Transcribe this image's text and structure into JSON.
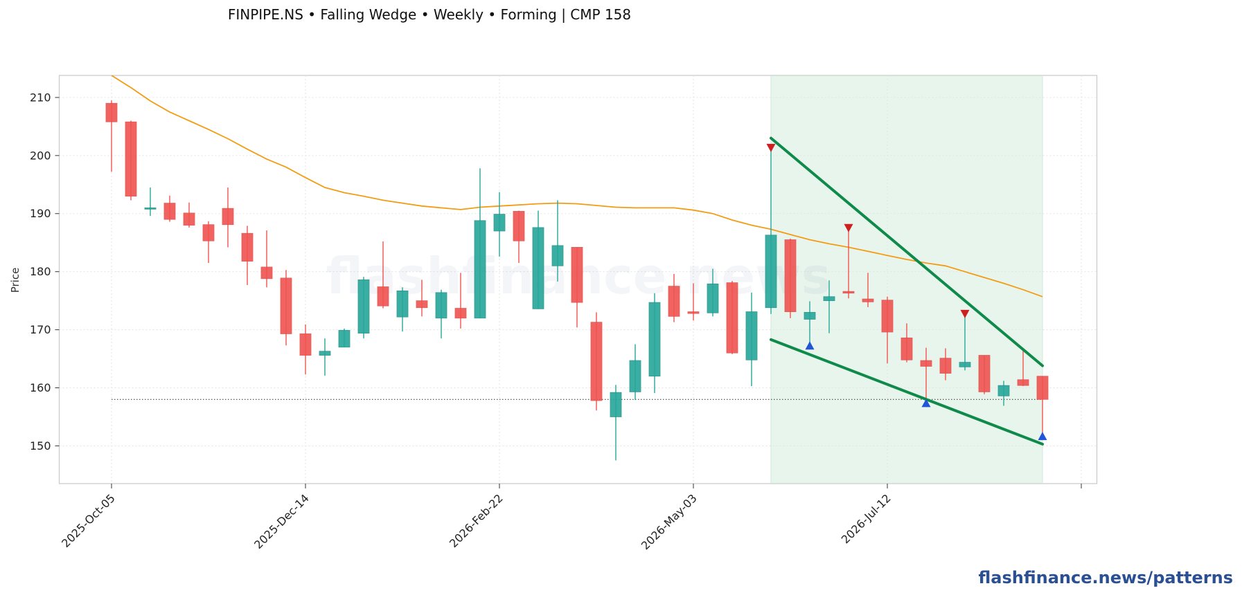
{
  "chart_data": {
    "type": "candlestick",
    "title": "FINPIPE.NS  •  Falling Wedge  •  Weekly  •  Forming  |  CMP 158",
    "ylabel": "Price",
    "ylim": [
      143.5,
      213.8
    ],
    "yticks": [
      150,
      160,
      170,
      180,
      190,
      200,
      210
    ],
    "xticks": [
      "2025-Oct-05",
      "2025-Dec-14",
      "2026-Feb-22",
      "2026-May-03",
      "2026-Jul-12"
    ],
    "grid": true,
    "watermark": "flashfinance.news",
    "brand": "flashfinance.news/patterns",
    "colors": {
      "up": "#26a69a",
      "down": "#ef5350",
      "ma": "#f39c12",
      "wedge": "#0f8a4a",
      "zone": "#e8f5ec",
      "high_marker": "#cc1f1f",
      "low_marker": "#1f55d6"
    },
    "candles": [
      {
        "date": "2025-Oct-05",
        "o": 209.0,
        "h": 209.5,
        "l": 197.2,
        "c": 205.8
      },
      {
        "date": "2025-Oct-12",
        "o": 205.8,
        "h": 206.0,
        "l": 192.3,
        "c": 193.0
      },
      {
        "date": "2025-Oct-19",
        "o": 191.0,
        "h": 194.5,
        "l": 189.6,
        "c": 191.0
      },
      {
        "date": "2025-Oct-26",
        "o": 191.8,
        "h": 193.1,
        "l": 188.6,
        "c": 189.0
      },
      {
        "date": "2025-Nov-02",
        "o": 190.1,
        "h": 191.9,
        "l": 187.6,
        "c": 188.0
      },
      {
        "date": "2025-Nov-09",
        "o": 188.1,
        "h": 188.7,
        "l": 181.5,
        "c": 185.3
      },
      {
        "date": "2025-Nov-16",
        "o": 190.9,
        "h": 194.5,
        "l": 184.2,
        "c": 188.1
      },
      {
        "date": "2025-Nov-23",
        "o": 186.6,
        "h": 187.9,
        "l": 177.7,
        "c": 181.8
      },
      {
        "date": "2025-Nov-30",
        "o": 180.8,
        "h": 187.1,
        "l": 177.3,
        "c": 178.8
      },
      {
        "date": "2025-Dec-07",
        "o": 178.9,
        "h": 180.3,
        "l": 167.3,
        "c": 169.3
      },
      {
        "date": "2025-Dec-14",
        "o": 169.3,
        "h": 170.9,
        "l": 162.3,
        "c": 165.6
      },
      {
        "date": "2025-Dec-21",
        "o": 165.6,
        "h": 168.5,
        "l": 162.1,
        "c": 166.3
      },
      {
        "date": "2025-Dec-28",
        "o": 167.0,
        "h": 170.2,
        "l": 167.0,
        "c": 169.9
      },
      {
        "date": "2026-Jan-04",
        "o": 169.4,
        "h": 179.1,
        "l": 168.5,
        "c": 178.6
      },
      {
        "date": "2026-Jan-11",
        "o": 177.4,
        "h": 185.2,
        "l": 173.7,
        "c": 174.1
      },
      {
        "date": "2026-Jan-18",
        "o": 172.2,
        "h": 177.3,
        "l": 169.7,
        "c": 176.7
      },
      {
        "date": "2026-Jan-25",
        "o": 175.0,
        "h": 178.6,
        "l": 172.3,
        "c": 173.8
      },
      {
        "date": "2026-Feb-01",
        "o": 172.0,
        "h": 176.9,
        "l": 168.5,
        "c": 176.4
      },
      {
        "date": "2026-Feb-08",
        "o": 173.7,
        "h": 179.8,
        "l": 170.2,
        "c": 172.0
      },
      {
        "date": "2026-Feb-15",
        "o": 172.0,
        "h": 197.8,
        "l": 172.0,
        "c": 188.8
      },
      {
        "date": "2026-Feb-22",
        "o": 187.0,
        "h": 193.7,
        "l": 182.6,
        "c": 189.9
      },
      {
        "date": "2026-Mar-01",
        "o": 190.4,
        "h": 190.5,
        "l": 181.5,
        "c": 185.3
      },
      {
        "date": "2026-Mar-08",
        "o": 173.6,
        "h": 190.5,
        "l": 173.6,
        "c": 187.6
      },
      {
        "date": "2026-Mar-15",
        "o": 181.0,
        "h": 192.3,
        "l": 178.3,
        "c": 184.5
      },
      {
        "date": "2026-Mar-22",
        "o": 184.2,
        "h": 184.2,
        "l": 170.4,
        "c": 174.7
      },
      {
        "date": "2026-Mar-29",
        "o": 171.3,
        "h": 173.0,
        "l": 156.1,
        "c": 157.8
      },
      {
        "date": "2026-Apr-05",
        "o": 155.0,
        "h": 160.5,
        "l": 147.5,
        "c": 159.2
      },
      {
        "date": "2026-Apr-12",
        "o": 159.3,
        "h": 167.5,
        "l": 157.9,
        "c": 164.7
      },
      {
        "date": "2026-Apr-19",
        "o": 162.0,
        "h": 176.3,
        "l": 159.1,
        "c": 174.7
      },
      {
        "date": "2026-Apr-26",
        "o": 177.5,
        "h": 179.6,
        "l": 171.3,
        "c": 172.3
      },
      {
        "date": "2026-May-03",
        "o": 173.1,
        "h": 178.0,
        "l": 171.6,
        "c": 172.8
      },
      {
        "date": "2026-May-10",
        "o": 172.9,
        "h": 180.5,
        "l": 172.3,
        "c": 177.9
      },
      {
        "date": "2026-May-17",
        "o": 178.1,
        "h": 178.4,
        "l": 165.8,
        "c": 166.0
      },
      {
        "date": "2026-May-24",
        "o": 164.8,
        "h": 176.4,
        "l": 160.3,
        "c": 173.1
      },
      {
        "date": "2026-May-31",
        "o": 173.8,
        "h": 201.6,
        "l": 172.7,
        "c": 186.3
      },
      {
        "date": "2026-Jun-07",
        "o": 185.5,
        "h": 185.7,
        "l": 172.0,
        "c": 173.1
      },
      {
        "date": "2026-Jun-14",
        "o": 171.8,
        "h": 174.9,
        "l": 166.9,
        "c": 173.0
      },
      {
        "date": "2026-Jun-21",
        "o": 175.0,
        "h": 178.5,
        "l": 169.4,
        "c": 175.7
      },
      {
        "date": "2026-Jun-28",
        "o": 176.6,
        "h": 187.3,
        "l": 175.4,
        "c": 176.3
      },
      {
        "date": "2026-Jul-05",
        "o": 175.3,
        "h": 179.8,
        "l": 173.9,
        "c": 174.8
      },
      {
        "date": "2026-Jul-12",
        "o": 175.1,
        "h": 175.7,
        "l": 164.2,
        "c": 169.6
      },
      {
        "date": "2026-Jul-19",
        "o": 168.6,
        "h": 171.1,
        "l": 164.4,
        "c": 164.8
      },
      {
        "date": "2026-Jul-26",
        "o": 164.7,
        "h": 166.9,
        "l": 157.5,
        "c": 163.7
      },
      {
        "date": "2026-Aug-02",
        "o": 165.1,
        "h": 166.8,
        "l": 161.3,
        "c": 162.5
      },
      {
        "date": "2026-Aug-09",
        "o": 163.6,
        "h": 172.6,
        "l": 163.0,
        "c": 164.4
      },
      {
        "date": "2026-Aug-16",
        "o": 165.6,
        "h": 165.6,
        "l": 158.9,
        "c": 159.3
      },
      {
        "date": "2026-Aug-23",
        "o": 158.6,
        "h": 161.2,
        "l": 156.9,
        "c": 160.4
      },
      {
        "date": "2026-Aug-30",
        "o": 161.4,
        "h": 166.5,
        "l": 160.3,
        "c": 160.4
      },
      {
        "date": "2026-Sep-06",
        "o": 162.0,
        "h": 162.0,
        "l": 151.5,
        "c": 158.0
      }
    ],
    "moving_average": [
      213.8,
      211.7,
      209.4,
      207.5,
      206.0,
      204.5,
      202.9,
      201.1,
      199.4,
      198.0,
      196.2,
      194.5,
      193.6,
      193.0,
      192.3,
      191.8,
      191.3,
      191.0,
      190.7,
      191.1,
      191.3,
      191.5,
      191.7,
      191.8,
      191.7,
      191.4,
      191.1,
      191.0,
      191.0,
      191.0,
      190.6,
      190.0,
      188.9,
      188.0,
      187.3,
      186.4,
      185.5,
      184.8,
      184.2,
      183.5,
      182.8,
      182.1,
      181.5,
      181.0,
      180.0,
      179.0,
      178.0,
      176.9,
      175.7
    ],
    "support_level": 158,
    "pattern": {
      "zone_start_index": 34,
      "zone_end_index": 48,
      "upper_line": {
        "from": {
          "index": 34,
          "price": 203.0
        },
        "to": {
          "index": 48,
          "price": 163.8
        }
      },
      "lower_line": {
        "from": {
          "index": 34,
          "price": 168.3
        },
        "to": {
          "index": 48,
          "price": 150.3
        }
      },
      "swing_highs": [
        {
          "index": 34,
          "price": 201.3
        },
        {
          "index": 38,
          "price": 187.5
        },
        {
          "index": 44,
          "price": 172.7
        }
      ],
      "swing_lows": [
        {
          "index": 36,
          "price": 167.3
        },
        {
          "index": 42,
          "price": 157.4
        },
        {
          "index": 48,
          "price": 151.7
        }
      ]
    }
  }
}
